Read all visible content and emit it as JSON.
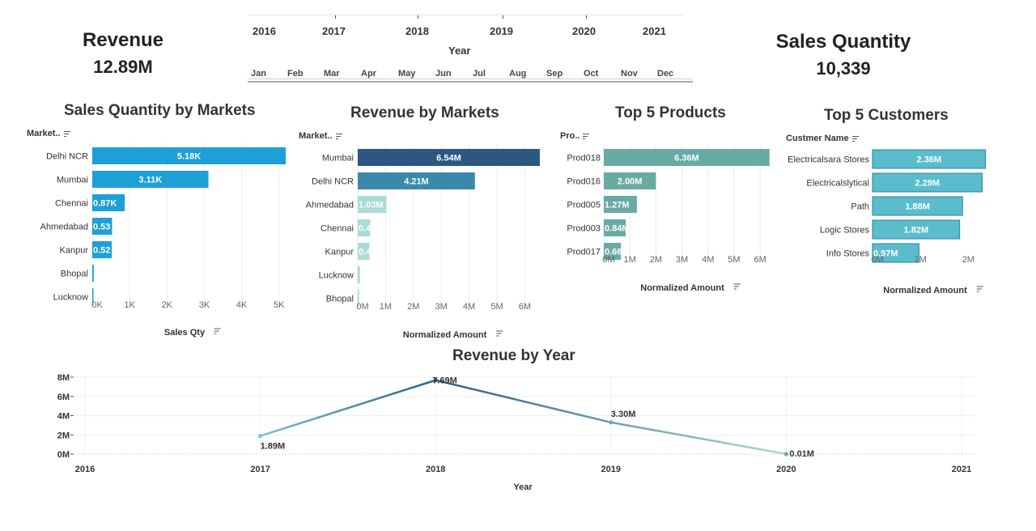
{
  "kpis": {
    "revenue": {
      "title": "Revenue",
      "value": "12.89M"
    },
    "sales_qty": {
      "title": "Sales Quantity",
      "value": "10,339"
    }
  },
  "year_filter": {
    "years": [
      "2016",
      "2017",
      "2018",
      "2019",
      "2020",
      "2021"
    ],
    "label": "Year"
  },
  "month_filter": {
    "months": [
      "Jan",
      "Feb",
      "Mar",
      "Apr",
      "May",
      "Jun",
      "Jul",
      "Aug",
      "Sep",
      "Oct",
      "Nov",
      "Dec"
    ]
  },
  "chart_data": [
    {
      "id": "sales-qty-by-markets",
      "type": "bar",
      "orientation": "horizontal",
      "title": "Sales Quantity by Markets",
      "field_header": "Market..",
      "categories": [
        "Delhi NCR",
        "Mumbai",
        "Chennai",
        "Ahmedabad",
        "Kanpur",
        "Bhopal",
        "Lucknow"
      ],
      "values": [
        5180,
        3110,
        870,
        530,
        520,
        40,
        15
      ],
      "labels": [
        "5.18K",
        "3.11K",
        "0.87K",
        "0.53",
        "0.52",
        "",
        ""
      ],
      "colors": [
        "#1f9fd8",
        "#1f9fd8",
        "#1f9fd8",
        "#1f9fd8",
        "#1f9fd8",
        "#1f9fd8",
        "#1f9fd8"
      ],
      "xlim": [
        0,
        5200
      ],
      "ticks": [
        0,
        1000,
        2000,
        3000,
        4000,
        5000
      ],
      "tick_labels": [
        "0K",
        "1K",
        "2K",
        "3K",
        "4K",
        "5K"
      ],
      "xlabel": "Sales Qty"
    },
    {
      "id": "revenue-by-markets",
      "type": "bar",
      "orientation": "horizontal",
      "title": "Revenue by Markets",
      "field_header": "Market..",
      "categories": [
        "Mumbai",
        "Delhi NCR",
        "Ahmedabad",
        "Chennai",
        "Kanpur",
        "Lucknow",
        "Bhopal"
      ],
      "values": [
        6.54,
        4.21,
        1.03,
        0.45,
        0.42,
        0.08,
        0.05
      ],
      "labels": [
        "6.54M",
        "4.21M",
        "1.03M",
        "0.4",
        "0.4",
        "",
        ""
      ],
      "colors": [
        "#2b5782",
        "#3a89a8",
        "#a9dcd6",
        "#a9dcd6",
        "#a9dcd6",
        "#a9dcd6",
        "#a9dcd6"
      ],
      "xlim": [
        0,
        6.6
      ],
      "ticks": [
        0,
        1,
        2,
        3,
        4,
        5,
        6
      ],
      "tick_labels": [
        "0M",
        "1M",
        "2M",
        "3M",
        "4M",
        "5M",
        "6M"
      ],
      "xlabel": "Normalized Amount"
    },
    {
      "id": "top-5-products",
      "type": "bar",
      "orientation": "horizontal",
      "title": "Top 5 Products",
      "field_header": "Pro..",
      "categories": [
        "Prod018",
        "Prod016",
        "Prod005",
        "Prod003",
        "Prod017"
      ],
      "values": [
        6.36,
        2.0,
        1.27,
        0.84,
        0.66
      ],
      "labels": [
        "6.36M",
        "2.00M",
        "1.27M",
        "0.84M",
        "0.66"
      ],
      "colors": [
        "#69aaa4",
        "#69aaa4",
        "#69aaa4",
        "#69aaa4",
        "#69aaa4"
      ],
      "xlim": [
        0,
        6.4
      ],
      "ticks": [
        0,
        1,
        2,
        3,
        4,
        5,
        6
      ],
      "tick_labels": [
        "0M",
        "1M",
        "2M",
        "3M",
        "4M",
        "5M",
        "6M"
      ],
      "xlabel": "Normalized Amount"
    },
    {
      "id": "top-5-customers",
      "type": "bar",
      "orientation": "horizontal",
      "title": "Top 5 Customers",
      "field_header": "Custmer Name",
      "categories": [
        "Electricalsara Stores",
        "Electricalslytical",
        "Path",
        "Logic Stores",
        "Info Stores"
      ],
      "values": [
        2.36,
        2.29,
        1.88,
        1.82,
        0.97
      ],
      "labels": [
        "2.36M",
        "2.29M",
        "1.88M",
        "1.82M",
        "0.97M"
      ],
      "colors": [
        "#5bbccc",
        "#5bbccc",
        "#5bbccc",
        "#5bbccc",
        "#5bbccc"
      ],
      "xlim": [
        0,
        2.4
      ],
      "ticks": [
        0,
        1,
        2
      ],
      "tick_labels": [
        "0M",
        "1M",
        "2M"
      ],
      "xlabel": "Normalized Amount"
    },
    {
      "id": "revenue-by-year",
      "type": "line",
      "title": "Revenue by Year",
      "x": [
        2017,
        2018,
        2019,
        2020
      ],
      "y": [
        1.89,
        7.69,
        3.3,
        0.01
      ],
      "labels": [
        "1.89M",
        "7.69M",
        "3.30M",
        "0.01M"
      ],
      "xlim": [
        2016,
        2021
      ],
      "x_ticks": [
        "2016",
        "2017",
        "2018",
        "2019",
        "2020",
        "2021"
      ],
      "ylim": [
        0,
        8
      ],
      "y_ticks": [
        0,
        2,
        4,
        6,
        8
      ],
      "y_tick_labels": [
        "0M",
        "2M",
        "4M",
        "6M",
        "8M"
      ],
      "xlabel": "Year",
      "color_start": "#7cc3cb",
      "color_peak": "#2d5f86",
      "color_end": "#a9dcd6"
    }
  ]
}
